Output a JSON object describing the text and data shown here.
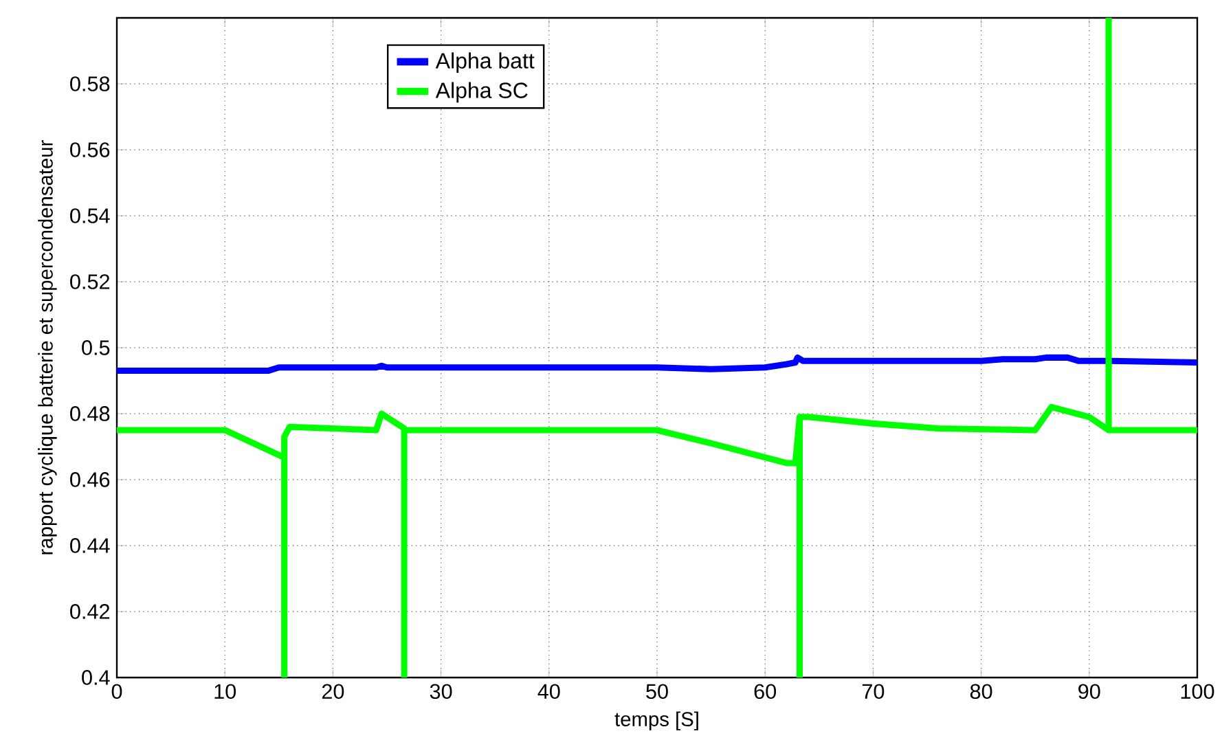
{
  "chart_data": {
    "type": "line",
    "xlabel": "temps [S]",
    "ylabel": "rapport cyclique  batterie  et  supercondensateur",
    "xlim": [
      0,
      100
    ],
    "ylim": [
      0.4,
      0.6
    ],
    "xticks": [
      0,
      10,
      20,
      30,
      40,
      50,
      60,
      70,
      80,
      90,
      100
    ],
    "yticks": [
      0.4,
      0.42,
      0.44,
      0.46,
      0.48,
      0.5,
      0.52,
      0.54,
      0.56,
      0.58
    ],
    "grid": true,
    "legend": "top",
    "line_style": "solid",
    "marker": "none",
    "series": [
      {
        "name": "Alpha batt",
        "color": "#0000ff",
        "x": [
          0,
          14,
          15,
          24,
          24.5,
          25,
          50,
          55,
          60,
          62,
          62.8,
          63,
          63.5,
          70,
          80,
          82,
          85,
          86,
          88,
          89,
          92,
          100
        ],
        "values": [
          0.493,
          0.493,
          0.494,
          0.494,
          0.4945,
          0.494,
          0.494,
          0.4935,
          0.494,
          0.495,
          0.4955,
          0.497,
          0.496,
          0.496,
          0.496,
          0.4965,
          0.4965,
          0.497,
          0.497,
          0.496,
          0.496,
          0.4955
        ]
      },
      {
        "name": "Alpha SC",
        "color": "#00ff00",
        "x": [
          0,
          10,
          15.3,
          15.5,
          15.5,
          15.5,
          16,
          24,
          24.5,
          26.6,
          26.6,
          26.6,
          27,
          50,
          55,
          62,
          62.8,
          63.2,
          63.2,
          63.2,
          64,
          70,
          76,
          85,
          86.5,
          90,
          91.8,
          91.8,
          91.8,
          92.2,
          100
        ],
        "values": [
          0.475,
          0.475,
          0.467,
          0.467,
          0.4,
          0.473,
          0.476,
          0.475,
          0.48,
          0.4755,
          0.4,
          0.475,
          0.475,
          0.475,
          0.471,
          0.465,
          0.465,
          0.479,
          0.4,
          0.479,
          0.479,
          0.477,
          0.4755,
          0.475,
          0.482,
          0.479,
          0.475,
          0.6,
          0.475,
          0.475,
          0.475
        ]
      }
    ]
  }
}
